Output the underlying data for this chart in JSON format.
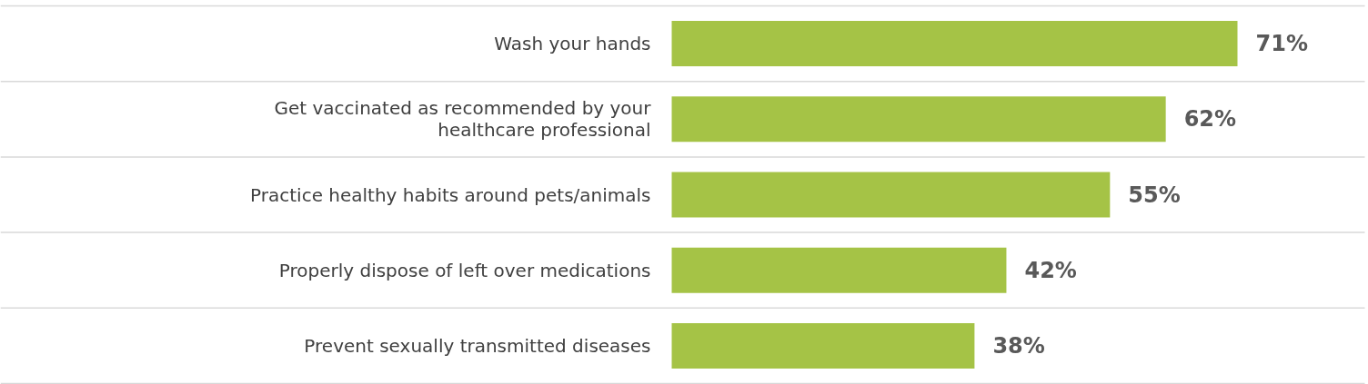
{
  "chart_data": {
    "type": "bar",
    "orientation": "horizontal",
    "categories": [
      "Wash your hands",
      "Get vaccinated as recommended by your healthcare professional",
      "Practice healthy habits around pets/animals",
      "Properly dispose of left over medications",
      "Prevent sexually transmitted diseases"
    ],
    "values": [
      71,
      62,
      55,
      42,
      38
    ],
    "value_labels": [
      "71%",
      "62%",
      "55%",
      "42%",
      "38%"
    ],
    "color": "#a5c346"
  }
}
